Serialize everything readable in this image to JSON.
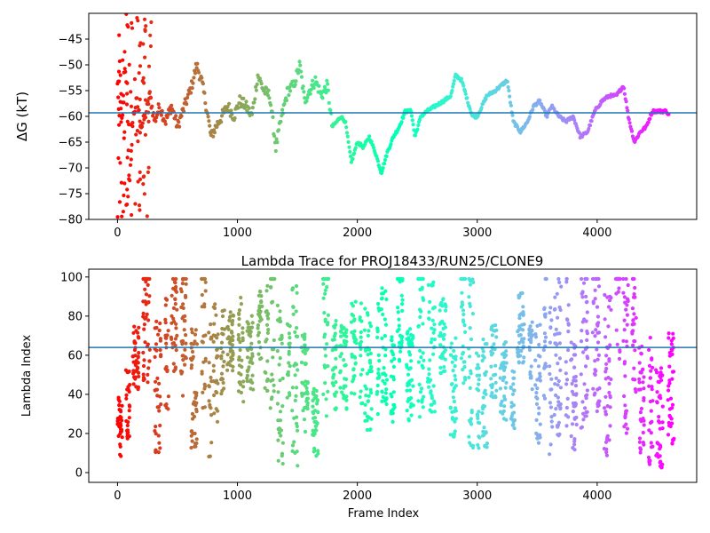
{
  "chart_data": [
    {
      "type": "scatter",
      "title": "",
      "xlabel": "",
      "ylabel": "ΔG (kT)",
      "xlim": [
        -240,
        4830
      ],
      "ylim": [
        -80,
        -40
      ],
      "xticks": [
        0,
        1000,
        2000,
        3000,
        4000
      ],
      "xtick_labels": [
        "0",
        "1000",
        "2000",
        "3000",
        "4000"
      ],
      "yticks": [
        -80,
        -75,
        -70,
        -65,
        -60,
        -55,
        -50,
        -45
      ],
      "ytick_labels": [
        "−80",
        "−75",
        "−70",
        "−65",
        "−60",
        "−55",
        "−50",
        "−45"
      ],
      "hline": -59.3,
      "hline_color": "#1f77b4",
      "colormap": "rainbow",
      "grid": false,
      "x_range": [
        0,
        4600
      ],
      "trace": [
        [
          0,
          -54
        ],
        [
          20,
          -50
        ],
        [
          40,
          -62
        ],
        [
          60,
          -48
        ],
        [
          80,
          -58
        ],
        [
          100,
          -74
        ],
        [
          130,
          -60
        ],
        [
          160,
          -57
        ],
        [
          200,
          -62
        ],
        [
          230,
          -60
        ],
        [
          270,
          -56
        ],
        [
          310,
          -61
        ],
        [
          350,
          -58
        ],
        [
          400,
          -61
        ],
        [
          450,
          -58
        ],
        [
          500,
          -62
        ],
        [
          560,
          -58
        ],
        [
          620,
          -54
        ],
        [
          660,
          -50
        ],
        [
          700,
          -53
        ],
        [
          740,
          -58
        ],
        [
          780,
          -64
        ],
        [
          820,
          -62
        ],
        [
          870,
          -60
        ],
        [
          920,
          -58
        ],
        [
          970,
          -60
        ],
        [
          1020,
          -57
        ],
        [
          1070,
          -58
        ],
        [
          1120,
          -60
        ],
        [
          1170,
          -52
        ],
        [
          1220,
          -55
        ],
        [
          1270,
          -56
        ],
        [
          1320,
          -66
        ],
        [
          1370,
          -60
        ],
        [
          1420,
          -55
        ],
        [
          1470,
          -54
        ],
        [
          1520,
          -50
        ],
        [
          1560,
          -57
        ],
        [
          1600,
          -55
        ],
        [
          1650,
          -53
        ],
        [
          1700,
          -56
        ],
        [
          1750,
          -54
        ],
        [
          1790,
          -62
        ],
        [
          1830,
          -61
        ],
        [
          1860,
          -60
        ],
        [
          1900,
          -61
        ],
        [
          1950,
          -69
        ],
        [
          2000,
          -65
        ],
        [
          2050,
          -66
        ],
        [
          2100,
          -64
        ],
        [
          2150,
          -67
        ],
        [
          2200,
          -71
        ],
        [
          2250,
          -67
        ],
        [
          2300,
          -64
        ],
        [
          2350,
          -62
        ],
        [
          2400,
          -59
        ],
        [
          2450,
          -59
        ],
        [
          2480,
          -64
        ],
        [
          2530,
          -60
        ],
        [
          2580,
          -59
        ],
        [
          2650,
          -58
        ],
        [
          2720,
          -57
        ],
        [
          2780,
          -56
        ],
        [
          2820,
          -52
        ],
        [
          2870,
          -53
        ],
        [
          2920,
          -57
        ],
        [
          2960,
          -60
        ],
        [
          3000,
          -60
        ],
        [
          3040,
          -58
        ],
        [
          3080,
          -56
        ],
        [
          3150,
          -55
        ],
        [
          3200,
          -54
        ],
        [
          3250,
          -53
        ],
        [
          3300,
          -61
        ],
        [
          3360,
          -63
        ],
        [
          3420,
          -61
        ],
        [
          3470,
          -58
        ],
        [
          3520,
          -57
        ],
        [
          3580,
          -60
        ],
        [
          3620,
          -58
        ],
        [
          3680,
          -60
        ],
        [
          3740,
          -61
        ],
        [
          3800,
          -60
        ],
        [
          3860,
          -64
        ],
        [
          3920,
          -63
        ],
        [
          3980,
          -59
        ],
        [
          4040,
          -57
        ],
        [
          4100,
          -56
        ],
        [
          4160,
          -56
        ],
        [
          4220,
          -54
        ],
        [
          4260,
          -60
        ],
        [
          4310,
          -65
        ],
        [
          4360,
          -63
        ],
        [
          4410,
          -62
        ],
        [
          4460,
          -59
        ],
        [
          4520,
          -59
        ],
        [
          4580,
          -59
        ],
        [
          4600,
          -60
        ]
      ],
      "early_scatter": {
        "x_range": [
          0,
          290
        ],
        "y_range": [
          -80,
          -40
        ]
      }
    },
    {
      "type": "scatter",
      "title": "Lambda Trace for PROJ18433/RUN25/CLONE9",
      "xlabel": "Frame Index",
      "ylabel": "Lambda Index",
      "xlim": [
        -240,
        4830
      ],
      "ylim": [
        -5,
        104
      ],
      "xticks": [
        0,
        1000,
        2000,
        3000,
        4000
      ],
      "xtick_labels": [
        "0",
        "1000",
        "2000",
        "3000",
        "4000"
      ],
      "yticks": [
        0,
        20,
        40,
        60,
        80,
        100
      ],
      "ytick_labels": [
        "0",
        "20",
        "40",
        "60",
        "80",
        "100"
      ],
      "hline": 64,
      "hline_color": "#1f77b4",
      "colormap": "rainbow",
      "grid": false,
      "x_range": [
        0,
        4600
      ],
      "y_range": [
        0,
        99
      ]
    }
  ]
}
